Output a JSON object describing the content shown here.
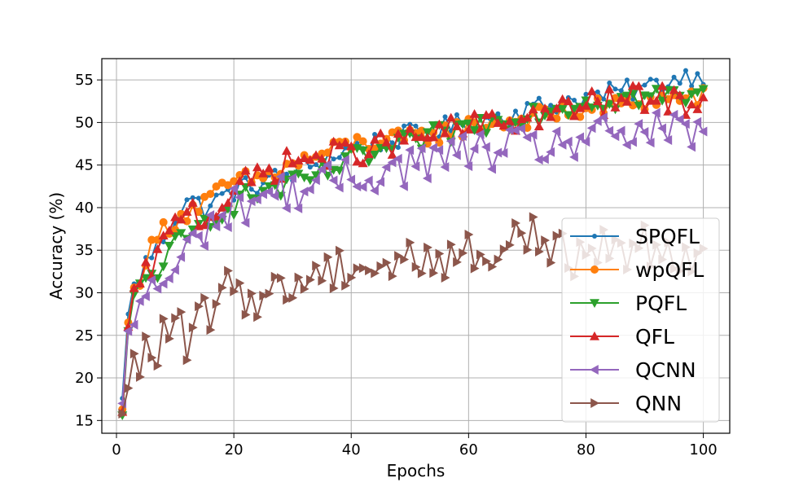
{
  "chart_data": {
    "type": "line",
    "xlabel": "Epochs",
    "ylabel": "Accuracy (%)",
    "xlim": [
      -2.5,
      104.5
    ],
    "ylim": [
      13.5,
      57.5
    ],
    "x_ticks": [
      0,
      20,
      40,
      60,
      80,
      100
    ],
    "y_ticks": [
      15,
      20,
      25,
      30,
      35,
      40,
      45,
      50,
      55
    ],
    "grid": true,
    "legend_position": "center-right",
    "series": [
      {
        "name": "SPQFL",
        "color": "#1f77b4",
        "marker": "dot",
        "anchors": [
          [
            1,
            17.6
          ],
          [
            2,
            27.5
          ],
          [
            3,
            30.5
          ],
          [
            5,
            33.5
          ],
          [
            8,
            36.5
          ],
          [
            10,
            39
          ],
          [
            12,
            41
          ],
          [
            15,
            40
          ],
          [
            20,
            42
          ],
          [
            25,
            43
          ],
          [
            30,
            44
          ],
          [
            40,
            47
          ],
          [
            50,
            48.5
          ],
          [
            60,
            50
          ],
          [
            70,
            51.5
          ],
          [
            80,
            53
          ],
          [
            90,
            54
          ],
          [
            97,
            55.5
          ],
          [
            100,
            55.7
          ]
        ]
      },
      {
        "name": "wpQFL",
        "color": "#ff7f0e",
        "marker": "circle",
        "anchors": [
          [
            1,
            16.3
          ],
          [
            2,
            26.5
          ],
          [
            3,
            30
          ],
          [
            5,
            34
          ],
          [
            8,
            37.5
          ],
          [
            10,
            38.5
          ],
          [
            12,
            39.5
          ],
          [
            15,
            40.5
          ],
          [
            20,
            43
          ],
          [
            25,
            43.5
          ],
          [
            30,
            45
          ],
          [
            40,
            47.5
          ],
          [
            50,
            48
          ],
          [
            60,
            49.5
          ],
          [
            70,
            50.5
          ],
          [
            80,
            51.5
          ],
          [
            90,
            52.5
          ],
          [
            100,
            53
          ]
        ]
      },
      {
        "name": "PQFL",
        "color": "#2ca02c",
        "marker": "triangle-down",
        "anchors": [
          [
            1,
            15.6
          ],
          [
            2,
            25.5
          ],
          [
            3,
            29
          ],
          [
            5,
            31.5
          ],
          [
            8,
            33.5
          ],
          [
            10,
            35.5
          ],
          [
            12,
            36
          ],
          [
            15,
            38.5
          ],
          [
            20,
            40.5
          ],
          [
            25,
            42
          ],
          [
            30,
            42.5
          ],
          [
            40,
            45.5
          ],
          [
            50,
            47.5
          ],
          [
            60,
            49.5
          ],
          [
            70,
            51
          ],
          [
            80,
            52.5
          ],
          [
            90,
            53
          ],
          [
            100,
            53
          ]
        ]
      },
      {
        "name": "QFL",
        "color": "#d62728",
        "marker": "triangle-up",
        "anchors": [
          [
            1,
            16
          ],
          [
            2,
            26
          ],
          [
            3,
            29.5
          ],
          [
            5,
            32
          ],
          [
            8,
            35.5
          ],
          [
            10,
            38
          ],
          [
            12,
            40.5
          ],
          [
            15,
            38.5
          ],
          [
            20,
            42
          ],
          [
            25,
            44
          ],
          [
            30,
            45.5
          ],
          [
            40,
            46.5
          ],
          [
            50,
            48
          ],
          [
            60,
            49.5
          ],
          [
            70,
            50.5
          ],
          [
            80,
            52
          ],
          [
            90,
            53
          ],
          [
            100,
            52.2
          ]
        ]
      },
      {
        "name": "QCNN",
        "color": "#9467bd",
        "marker": "triangle-left",
        "anchors": [
          [
            1,
            17
          ],
          [
            2,
            25.5
          ],
          [
            3,
            24.5
          ],
          [
            4,
            29.5
          ],
          [
            8,
            31.5
          ],
          [
            10,
            32
          ],
          [
            12,
            35
          ],
          [
            15,
            37.5
          ],
          [
            20,
            40
          ],
          [
            25,
            41.5
          ],
          [
            30,
            42
          ],
          [
            40,
            43.5
          ],
          [
            50,
            45
          ],
          [
            60,
            46.5
          ],
          [
            70,
            47
          ],
          [
            80,
            48
          ],
          [
            90,
            49
          ],
          [
            100,
            48.3
          ]
        ]
      },
      {
        "name": "QNN",
        "color": "#8c564b",
        "marker": "triangle-right",
        "anchors": [
          [
            1,
            15.8
          ],
          [
            2,
            18.8
          ],
          [
            3,
            20.6
          ],
          [
            5,
            23
          ],
          [
            8,
            24.5
          ],
          [
            10,
            27
          ],
          [
            12,
            23
          ],
          [
            15,
            27.5
          ],
          [
            20,
            30.5
          ],
          [
            25,
            29.5
          ],
          [
            30,
            31
          ],
          [
            35,
            32.5
          ],
          [
            40,
            33.5
          ],
          [
            45,
            33
          ],
          [
            50,
            34
          ],
          [
            55,
            34
          ],
          [
            60,
            34.5
          ],
          [
            65,
            34.5
          ],
          [
            70,
            37.8
          ],
          [
            75,
            34
          ],
          [
            80,
            35
          ],
          [
            90,
            35.5
          ],
          [
            100,
            35
          ]
        ]
      }
    ]
  }
}
